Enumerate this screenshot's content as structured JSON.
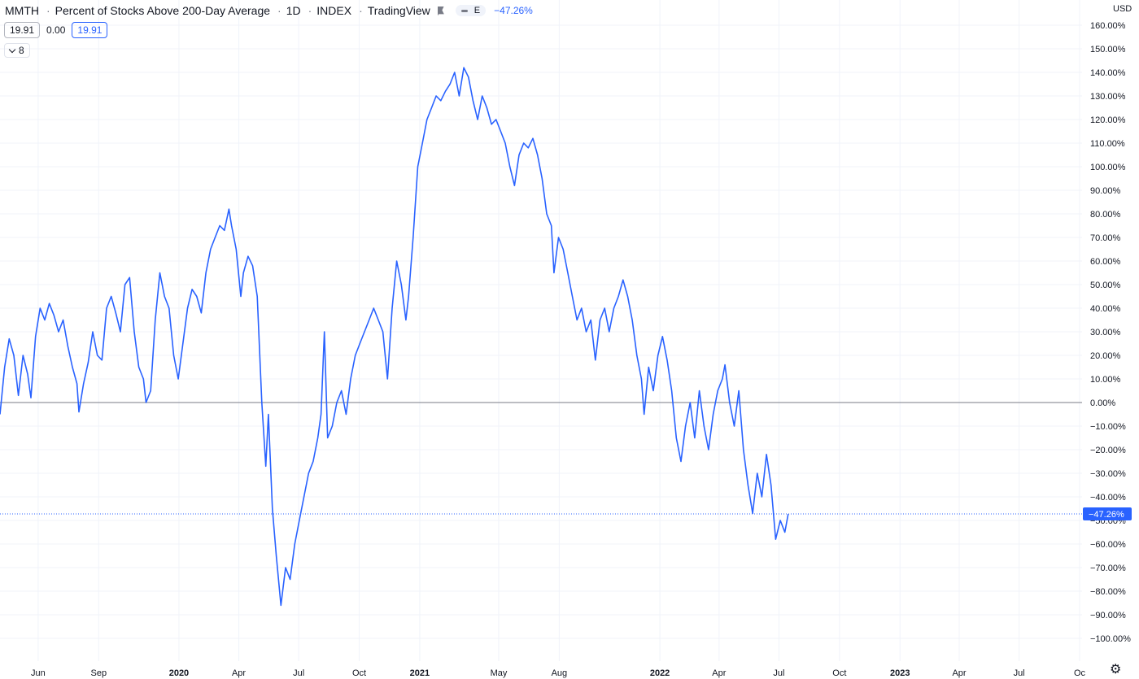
{
  "header": {
    "symbol": "MMTH",
    "title": "Percent of Stocks Above 200-Day Average",
    "interval": "1D",
    "exchange": "INDEX",
    "source": "TradingView",
    "pill_label": "E",
    "change": "−47.26%"
  },
  "ohlc": {
    "open": "19.91",
    "change": "0.00",
    "close": "19.91"
  },
  "indicator_badge": "8",
  "currency": "USD",
  "colors": {
    "line": "#2962ff",
    "grid": "#f0f3fa",
    "zero_line": "#787b86",
    "text": "#131722",
    "accent": "#2962ff"
  },
  "chart_data": {
    "type": "line",
    "y_unit": "%",
    "ylim": [
      -100,
      160
    ],
    "y_ticks": [
      "160.00%",
      "150.00%",
      "140.00%",
      "130.00%",
      "120.00%",
      "110.00%",
      "100.00%",
      "90.00%",
      "80.00%",
      "70.00%",
      "60.00%",
      "50.00%",
      "40.00%",
      "30.00%",
      "20.00%",
      "10.00%",
      "0.00%",
      "−10.00%",
      "−20.00%",
      "−30.00%",
      "−40.00%",
      "−50.00%",
      "−60.00%",
      "−70.00%",
      "−80.00%",
      "−90.00%",
      "−100.00%"
    ],
    "x_range": [
      "2019-04-04",
      "2023-10-01"
    ],
    "x_ticks": [
      {
        "date": "2019-06-01",
        "label": "Jun",
        "bold": false
      },
      {
        "date": "2019-09-01",
        "label": "Sep",
        "bold": false
      },
      {
        "date": "2020-01-01",
        "label": "2020",
        "bold": true
      },
      {
        "date": "2020-04-01",
        "label": "Apr",
        "bold": false
      },
      {
        "date": "2020-07-01",
        "label": "Jul",
        "bold": false
      },
      {
        "date": "2020-10-01",
        "label": "Oct",
        "bold": false
      },
      {
        "date": "2021-01-01",
        "label": "2021",
        "bold": true
      },
      {
        "date": "2021-05-01",
        "label": "May",
        "bold": false
      },
      {
        "date": "2021-08-01",
        "label": "Aug",
        "bold": false
      },
      {
        "date": "2022-01-01",
        "label": "2022",
        "bold": true
      },
      {
        "date": "2022-04-01",
        "label": "Apr",
        "bold": false
      },
      {
        "date": "2022-07-01",
        "label": "Jul",
        "bold": false
      },
      {
        "date": "2022-10-01",
        "label": "Oct",
        "bold": false
      },
      {
        "date": "2023-01-01",
        "label": "2023",
        "bold": true
      },
      {
        "date": "2023-04-01",
        "label": "Apr",
        "bold": false
      },
      {
        "date": "2023-07-01",
        "label": "Jul",
        "bold": false
      },
      {
        "date": "2023-10-01",
        "label": "Oc",
        "bold": false
      }
    ],
    "last_value": -47.26,
    "last_label": "−47.26%",
    "zero_line": 0,
    "series": [
      {
        "values": [
          [
            "2019-04-04",
            -5
          ],
          [
            "2019-04-11",
            15
          ],
          [
            "2019-04-18",
            27
          ],
          [
            "2019-04-25",
            20
          ],
          [
            "2019-05-02",
            3
          ],
          [
            "2019-05-09",
            20
          ],
          [
            "2019-05-16",
            12
          ],
          [
            "2019-05-21",
            2
          ],
          [
            "2019-05-28",
            28
          ],
          [
            "2019-06-04",
            40
          ],
          [
            "2019-06-11",
            35
          ],
          [
            "2019-06-18",
            42
          ],
          [
            "2019-06-25",
            37
          ],
          [
            "2019-07-02",
            30
          ],
          [
            "2019-07-09",
            35
          ],
          [
            "2019-07-16",
            24
          ],
          [
            "2019-07-23",
            15
          ],
          [
            "2019-07-30",
            8
          ],
          [
            "2019-08-02",
            -4
          ],
          [
            "2019-08-09",
            8
          ],
          [
            "2019-08-16",
            17
          ],
          [
            "2019-08-23",
            30
          ],
          [
            "2019-08-30",
            20
          ],
          [
            "2019-09-06",
            18
          ],
          [
            "2019-09-13",
            40
          ],
          [
            "2019-09-20",
            45
          ],
          [
            "2019-09-27",
            38
          ],
          [
            "2019-10-04",
            30
          ],
          [
            "2019-10-11",
            50
          ],
          [
            "2019-10-18",
            53
          ],
          [
            "2019-10-25",
            30
          ],
          [
            "2019-11-01",
            15
          ],
          [
            "2019-11-08",
            10
          ],
          [
            "2019-11-12",
            0
          ],
          [
            "2019-11-19",
            5
          ],
          [
            "2019-11-26",
            35
          ],
          [
            "2019-12-03",
            55
          ],
          [
            "2019-12-10",
            45
          ],
          [
            "2019-12-17",
            40
          ],
          [
            "2019-12-24",
            20
          ],
          [
            "2019-12-31",
            10
          ],
          [
            "2020-01-07",
            25
          ],
          [
            "2020-01-14",
            40
          ],
          [
            "2020-01-21",
            48
          ],
          [
            "2020-01-28",
            45
          ],
          [
            "2020-02-04",
            38
          ],
          [
            "2020-02-11",
            55
          ],
          [
            "2020-02-18",
            65
          ],
          [
            "2020-02-25",
            70
          ],
          [
            "2020-03-03",
            75
          ],
          [
            "2020-03-10",
            73
          ],
          [
            "2020-03-17",
            82
          ],
          [
            "2020-03-21",
            75
          ],
          [
            "2020-03-28",
            65
          ],
          [
            "2020-04-04",
            45
          ],
          [
            "2020-04-08",
            55
          ],
          [
            "2020-04-15",
            62
          ],
          [
            "2020-04-22",
            58
          ],
          [
            "2020-04-29",
            45
          ],
          [
            "2020-05-06",
            0
          ],
          [
            "2020-05-12",
            -27
          ],
          [
            "2020-05-16",
            -5
          ],
          [
            "2020-05-22",
            -45
          ],
          [
            "2020-05-28",
            -65
          ],
          [
            "2020-06-04",
            -86
          ],
          [
            "2020-06-11",
            -70
          ],
          [
            "2020-06-18",
            -75
          ],
          [
            "2020-06-25",
            -60
          ],
          [
            "2020-07-02",
            -50
          ],
          [
            "2020-07-09",
            -40
          ],
          [
            "2020-07-16",
            -30
          ],
          [
            "2020-07-23",
            -25
          ],
          [
            "2020-07-30",
            -15
          ],
          [
            "2020-08-04",
            -5
          ],
          [
            "2020-08-09",
            30
          ],
          [
            "2020-08-14",
            -15
          ],
          [
            "2020-08-21",
            -10
          ],
          [
            "2020-08-28",
            0
          ],
          [
            "2020-09-04",
            5
          ],
          [
            "2020-09-11",
            -5
          ],
          [
            "2020-09-18",
            10
          ],
          [
            "2020-09-25",
            20
          ],
          [
            "2020-10-02",
            25
          ],
          [
            "2020-10-09",
            30
          ],
          [
            "2020-10-16",
            35
          ],
          [
            "2020-10-23",
            40
          ],
          [
            "2020-10-30",
            35
          ],
          [
            "2020-11-06",
            30
          ],
          [
            "2020-11-13",
            10
          ],
          [
            "2020-11-20",
            40
          ],
          [
            "2020-11-27",
            60
          ],
          [
            "2020-12-04",
            50
          ],
          [
            "2020-12-11",
            35
          ],
          [
            "2020-12-15",
            45
          ],
          [
            "2020-12-22",
            70
          ],
          [
            "2020-12-29",
            100
          ],
          [
            "2021-01-05",
            110
          ],
          [
            "2021-01-12",
            120
          ],
          [
            "2021-01-19",
            125
          ],
          [
            "2021-01-26",
            130
          ],
          [
            "2021-02-02",
            128
          ],
          [
            "2021-02-09",
            132
          ],
          [
            "2021-02-16",
            135
          ],
          [
            "2021-02-23",
            140
          ],
          [
            "2021-03-02",
            130
          ],
          [
            "2021-03-09",
            142
          ],
          [
            "2021-03-16",
            138
          ],
          [
            "2021-03-23",
            128
          ],
          [
            "2021-03-30",
            120
          ],
          [
            "2021-04-06",
            130
          ],
          [
            "2021-04-13",
            125
          ],
          [
            "2021-04-20",
            118
          ],
          [
            "2021-04-27",
            120
          ],
          [
            "2021-05-04",
            115
          ],
          [
            "2021-05-11",
            110
          ],
          [
            "2021-05-18",
            100
          ],
          [
            "2021-05-25",
            92
          ],
          [
            "2021-06-01",
            105
          ],
          [
            "2021-06-08",
            110
          ],
          [
            "2021-06-15",
            108
          ],
          [
            "2021-06-22",
            112
          ],
          [
            "2021-06-29",
            105
          ],
          [
            "2021-07-06",
            95
          ],
          [
            "2021-07-13",
            80
          ],
          [
            "2021-07-20",
            75
          ],
          [
            "2021-07-24",
            55
          ],
          [
            "2021-07-31",
            70
          ],
          [
            "2021-08-07",
            65
          ],
          [
            "2021-08-14",
            55
          ],
          [
            "2021-08-21",
            45
          ],
          [
            "2021-08-28",
            35
          ],
          [
            "2021-09-04",
            40
          ],
          [
            "2021-09-11",
            30
          ],
          [
            "2021-09-18",
            35
          ],
          [
            "2021-09-25",
            18
          ],
          [
            "2021-10-02",
            35
          ],
          [
            "2021-10-09",
            40
          ],
          [
            "2021-10-16",
            30
          ],
          [
            "2021-10-23",
            40
          ],
          [
            "2021-10-30",
            45
          ],
          [
            "2021-11-06",
            52
          ],
          [
            "2021-11-13",
            45
          ],
          [
            "2021-11-20",
            35
          ],
          [
            "2021-11-27",
            20
          ],
          [
            "2021-12-04",
            10
          ],
          [
            "2021-12-08",
            -5
          ],
          [
            "2021-12-15",
            15
          ],
          [
            "2021-12-22",
            5
          ],
          [
            "2021-12-29",
            20
          ],
          [
            "2022-01-05",
            28
          ],
          [
            "2022-01-12",
            18
          ],
          [
            "2022-01-19",
            5
          ],
          [
            "2022-01-26",
            -15
          ],
          [
            "2022-02-02",
            -25
          ],
          [
            "2022-02-09",
            -10
          ],
          [
            "2022-02-16",
            0
          ],
          [
            "2022-02-23",
            -15
          ],
          [
            "2022-03-02",
            5
          ],
          [
            "2022-03-09",
            -10
          ],
          [
            "2022-03-16",
            -20
          ],
          [
            "2022-03-23",
            -5
          ],
          [
            "2022-03-30",
            5
          ],
          [
            "2022-04-06",
            10
          ],
          [
            "2022-04-10",
            16
          ],
          [
            "2022-04-17",
            0
          ],
          [
            "2022-04-24",
            -10
          ],
          [
            "2022-05-01",
            5
          ],
          [
            "2022-05-08",
            -20
          ],
          [
            "2022-05-15",
            -35
          ],
          [
            "2022-05-22",
            -47
          ],
          [
            "2022-05-29",
            -30
          ],
          [
            "2022-06-05",
            -40
          ],
          [
            "2022-06-12",
            -22
          ],
          [
            "2022-06-19",
            -35
          ],
          [
            "2022-06-26",
            -58
          ],
          [
            "2022-07-03",
            -50
          ],
          [
            "2022-07-10",
            -55
          ],
          [
            "2022-07-15",
            -47.26
          ]
        ]
      }
    ]
  }
}
